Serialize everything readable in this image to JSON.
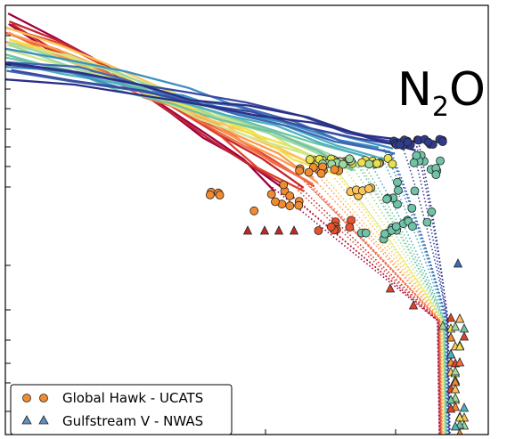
{
  "chart_data": {
    "type": "line",
    "title": "N2O",
    "title_main": "N",
    "title_sub": "2",
    "title_end": "O",
    "axes": {
      "x_ticks_labeled": false,
      "y_ticks_labeled": false,
      "grid": false
    },
    "colormap": [
      "#9e0142",
      "#c0272d",
      "#e0432c",
      "#f46d43",
      "#fb9a4f",
      "#fdc45a",
      "#eee34e",
      "#cfe68a",
      "#9fd89e",
      "#6fc3a6",
      "#4fb0c0",
      "#3d8fc2",
      "#3d6ab5",
      "#3a4a9f",
      "#2a2f86"
    ],
    "series": [
      {
        "name": "Global Hawk - UCATS",
        "marker": "circle"
      },
      {
        "name": "Gulfstream V - NWAS",
        "marker": "triangle"
      }
    ],
    "legend": {
      "placement": "bottom-left"
    }
  }
}
